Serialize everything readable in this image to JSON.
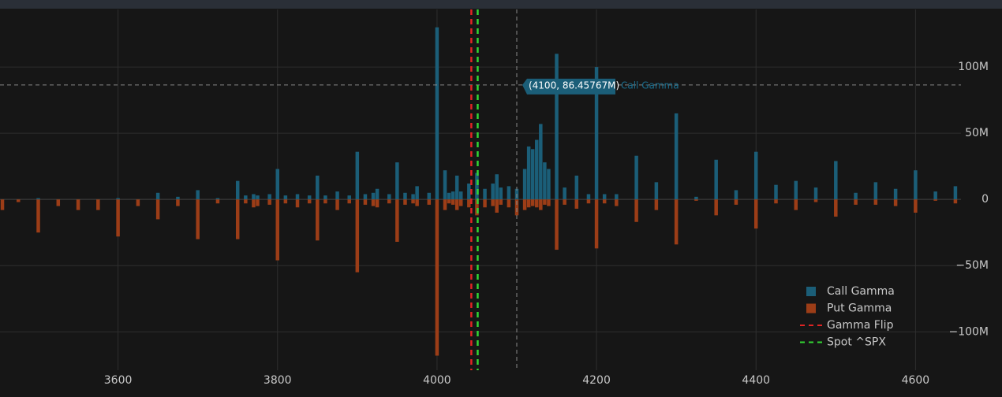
{
  "chart_data": {
    "type": "bar",
    "x": [
      3455,
      3475,
      3500,
      3525,
      3550,
      3575,
      3600,
      3625,
      3650,
      3675,
      3700,
      3725,
      3750,
      3760,
      3770,
      3775,
      3790,
      3800,
      3810,
      3825,
      3840,
      3850,
      3860,
      3875,
      3890,
      3900,
      3910,
      3920,
      3925,
      3940,
      3950,
      3960,
      3970,
      3975,
      3990,
      4000,
      4010,
      4015,
      4020,
      4025,
      4030,
      4040,
      4050,
      4060,
      4070,
      4075,
      4080,
      4090,
      4100,
      4110,
      4115,
      4120,
      4125,
      4130,
      4135,
      4140,
      4150,
      4160,
      4175,
      4190,
      4200,
      4210,
      4225,
      4250,
      4275,
      4300,
      4325,
      4350,
      4375,
      4400,
      4425,
      4450,
      4475,
      4500,
      4525,
      4550,
      4575,
      4600,
      4625,
      4650
    ],
    "series": [
      {
        "name": "Call Gamma",
        "color": "#1b5e78",
        "values": [
          0,
          0,
          1,
          0,
          0,
          0,
          1,
          0,
          5,
          2,
          7,
          1,
          14,
          3,
          4,
          3,
          4,
          23,
          3,
          4,
          3,
          18,
          3,
          6,
          3,
          36,
          4,
          5,
          8,
          4,
          28,
          5,
          4,
          10,
          5,
          130,
          22,
          5,
          6,
          18,
          6,
          12,
          20,
          8,
          12,
          19,
          9,
          10,
          8,
          23,
          40,
          38,
          45,
          57,
          28,
          23,
          110,
          9,
          18,
          4,
          100,
          4,
          4,
          33,
          13,
          65,
          2,
          30,
          7,
          36,
          11,
          14,
          9,
          29,
          5,
          13,
          8,
          22,
          6,
          10
        ]
      },
      {
        "name": "Put Gamma",
        "color": "#9c3d17",
        "values": [
          -8,
          -2,
          -25,
          -5,
          -8,
          -8,
          -28,
          -5,
          -15,
          -5,
          -30,
          -3,
          -30,
          -3,
          -6,
          -5,
          -4,
          -46,
          -3,
          -6,
          -3,
          -31,
          -3,
          -8,
          -3,
          -55,
          -4,
          -5,
          -6,
          -3,
          -32,
          -4,
          -3,
          -5,
          -4,
          -118,
          -8,
          -3,
          -4,
          -8,
          -5,
          -6,
          -12,
          -6,
          -5,
          -10,
          -4,
          -6,
          -12,
          -8,
          -6,
          -5,
          -6,
          -8,
          -4,
          -5,
          -38,
          -4,
          -7,
          -3,
          -37,
          -3,
          -5,
          -17,
          -8,
          -34,
          -1,
          -12,
          -4,
          -22,
          -3,
          -8,
          -2,
          -13,
          -4,
          -4,
          -5,
          -10,
          -1,
          -3
        ]
      }
    ],
    "vlines": [
      {
        "name": "Gamma Flip",
        "x": 4043,
        "color": "#e02424"
      },
      {
        "name": "Spot ^SPX",
        "x": 4051,
        "color": "#33d633"
      }
    ],
    "hover": {
      "x": 4100,
      "y": 86.45767,
      "label": "(4100, 86.45767M)"
    },
    "xlim": [
      3452,
      4657
    ],
    "ylim": [
      -129,
      143.5
    ],
    "xticks": [
      3600,
      3800,
      4000,
      4200,
      4400,
      4600
    ],
    "yticks": [
      {
        "value": -100,
        "label": "−100M"
      },
      {
        "value": -50,
        "label": "−50M"
      },
      0,
      {
        "value": 50,
        "label": "50M"
      },
      {
        "value": 100,
        "label": "100M"
      }
    ],
    "grid": true,
    "legend": "bottom-right"
  }
}
